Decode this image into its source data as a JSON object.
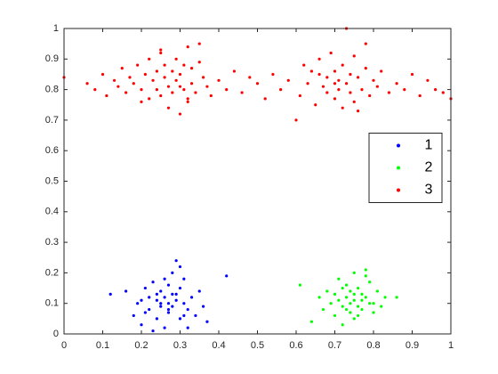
{
  "chart_data": {
    "type": "scatter",
    "xlim": [
      0,
      1
    ],
    "xticks": [
      0,
      0.1,
      0.2,
      0.3,
      0.4,
      0.5,
      0.6,
      0.7,
      0.8,
      0.9,
      1
    ],
    "ylim": [
      0,
      1
    ],
    "yticks": [
      0,
      0.1,
      0.2,
      0.3,
      0.4,
      0.5,
      0.6,
      0.7,
      0.8,
      0.9,
      1
    ],
    "legend": "east",
    "grid": false,
    "series": [
      {
        "name": "1",
        "color": "#0000ff",
        "x": [
          0.12,
          0.16,
          0.18,
          0.19,
          0.2,
          0.21,
          0.22,
          0.22,
          0.23,
          0.24,
          0.24,
          0.25,
          0.25,
          0.26,
          0.26,
          0.27,
          0.27,
          0.27,
          0.28,
          0.28,
          0.29,
          0.29,
          0.3,
          0.3,
          0.31,
          0.31,
          0.32,
          0.33,
          0.34,
          0.35,
          0.36,
          0.37,
          0.42,
          0.2,
          0.23,
          0.26,
          0.29,
          0.32,
          0.21,
          0.25,
          0.28,
          0.31,
          0.3,
          0.24,
          0.27
        ],
        "values": [
          0.13,
          0.14,
          0.06,
          0.1,
          0.03,
          0.15,
          0.08,
          0.12,
          0.17,
          0.05,
          0.11,
          0.09,
          0.14,
          0.02,
          0.12,
          0.07,
          0.1,
          0.16,
          0.13,
          0.09,
          0.24,
          0.11,
          0.05,
          0.15,
          0.1,
          0.18,
          0.08,
          0.12,
          0.06,
          0.14,
          0.09,
          0.04,
          0.19,
          0.11,
          0.01,
          0.18,
          0.13,
          0.02,
          0.07,
          0.1,
          0.2,
          0.06,
          0.22,
          0.13,
          0.08
        ]
      },
      {
        "name": "2",
        "color": "#00ff00",
        "x": [
          0.61,
          0.64,
          0.66,
          0.67,
          0.68,
          0.69,
          0.7,
          0.7,
          0.71,
          0.72,
          0.72,
          0.73,
          0.73,
          0.74,
          0.74,
          0.75,
          0.75,
          0.75,
          0.76,
          0.76,
          0.77,
          0.77,
          0.78,
          0.78,
          0.79,
          0.8,
          0.81,
          0.82,
          0.83,
          0.86,
          0.71,
          0.74,
          0.76,
          0.79,
          0.73,
          0.77,
          0.8,
          0.72,
          0.75,
          0.78
        ],
        "values": [
          0.16,
          0.04,
          0.12,
          0.08,
          0.14,
          0.1,
          0.06,
          0.13,
          0.18,
          0.09,
          0.03,
          0.12,
          0.16,
          0.07,
          0.1,
          0.2,
          0.13,
          0.05,
          0.09,
          0.15,
          0.11,
          0.08,
          0.21,
          0.12,
          0.1,
          0.07,
          0.14,
          0.09,
          0.12,
          0.12,
          0.11,
          0.14,
          0.06,
          0.17,
          0.08,
          0.13,
          0.1,
          0.15,
          0.11,
          0.19
        ]
      },
      {
        "name": "3",
        "color": "#ff0000",
        "x": [
          0,
          0.06,
          0.08,
          0.1,
          0.11,
          0.13,
          0.14,
          0.15,
          0.16,
          0.17,
          0.18,
          0.19,
          0.2,
          0.21,
          0.22,
          0.22,
          0.23,
          0.24,
          0.24,
          0.25,
          0.25,
          0.26,
          0.26,
          0.27,
          0.27,
          0.28,
          0.28,
          0.29,
          0.29,
          0.3,
          0.3,
          0.31,
          0.31,
          0.32,
          0.32,
          0.33,
          0.33,
          0.34,
          0.35,
          0.36,
          0.37,
          0.38,
          0.4,
          0.42,
          0.44,
          0.46,
          0.48,
          0.5,
          0.52,
          0.54,
          0.56,
          0.58,
          0.6,
          0.61,
          0.62,
          0.63,
          0.64,
          0.65,
          0.66,
          0.67,
          0.68,
          0.68,
          0.69,
          0.7,
          0.7,
          0.71,
          0.71,
          0.72,
          0.72,
          0.73,
          0.73,
          0.74,
          0.74,
          0.75,
          0.75,
          0.76,
          0.77,
          0.78,
          0.79,
          0.8,
          0.81,
          0.82,
          0.84,
          0.86,
          0.88,
          0.9,
          0.92,
          0.94,
          0.96,
          0.98,
          1,
          0.2,
          0.3,
          0.35,
          0.7,
          0.76,
          0.25,
          0.32,
          0.66,
          0.78
        ],
        "values": [
          0.84,
          0.82,
          0.8,
          0.85,
          0.78,
          0.83,
          0.81,
          0.87,
          0.79,
          0.84,
          0.82,
          0.88,
          0.8,
          0.85,
          0.77,
          0.9,
          0.83,
          0.8,
          0.86,
          0.92,
          0.78,
          0.84,
          0.88,
          0.81,
          0.74,
          0.86,
          0.79,
          0.9,
          0.83,
          0.72,
          0.85,
          0.8,
          0.88,
          0.76,
          0.94,
          0.82,
          0.87,
          0.79,
          0.95,
          0.84,
          0.81,
          0.78,
          0.83,
          0.8,
          0.86,
          0.79,
          0.84,
          0.82,
          0.77,
          0.85,
          0.8,
          0.83,
          0.7,
          0.78,
          0.88,
          0.82,
          0.86,
          0.75,
          0.9,
          0.81,
          0.84,
          0.79,
          0.92,
          0.77,
          0.86,
          0.83,
          0.8,
          0.88,
          0.74,
          1,
          0.82,
          0.85,
          0.79,
          0.91,
          0.76,
          0.84,
          0.8,
          0.87,
          0.78,
          0.83,
          0.81,
          0.86,
          0.79,
          0.82,
          0.8,
          0.85,
          0.78,
          0.83,
          0.8,
          0.79,
          0.77,
          0.76,
          0.81,
          0.89,
          0.82,
          0.73,
          0.93,
          0.77,
          0.85,
          0.95
        ]
      }
    ]
  }
}
